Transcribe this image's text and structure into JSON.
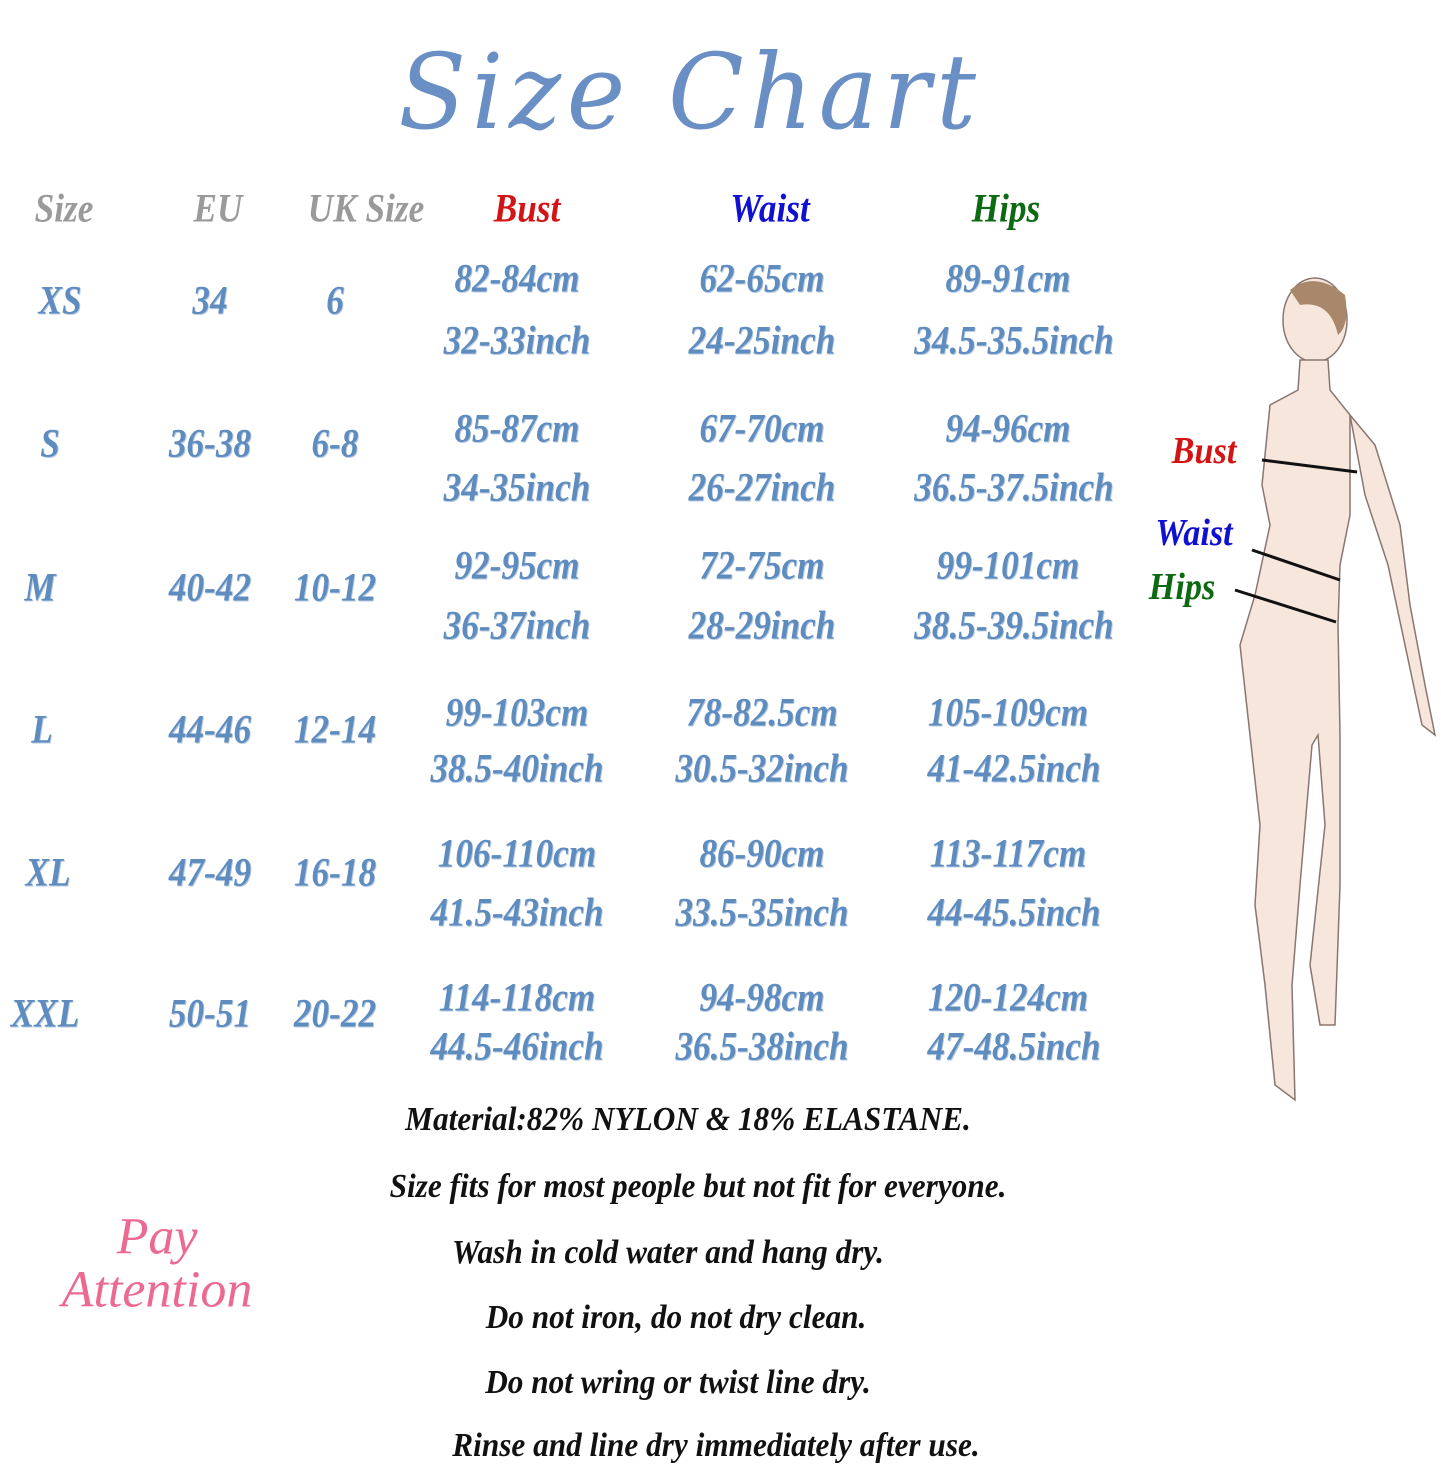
{
  "title": "Size Chart",
  "colors": {
    "bust": "#d41414",
    "waist": "#1010d0",
    "hips": "#0d6a12",
    "header_gray": "#9a9a9a",
    "values": "#5f8cbf",
    "title": "#6a8fc4",
    "attention": "#ec6a92"
  },
  "table": {
    "headers": {
      "size": "Size",
      "eu": "EU",
      "uk": "UK Size",
      "bust": "Bust",
      "waist": "Waist",
      "hips": "Hips"
    },
    "rows": [
      {
        "size": "XS",
        "eu": "34",
        "uk": "6",
        "bust_cm": "82-84cm",
        "bust_in": "32-33inch",
        "waist_cm": "62-65cm",
        "waist_in": "24-25inch",
        "hips_cm": "89-91cm",
        "hips_in": "34.5-35.5inch"
      },
      {
        "size": "S",
        "eu": "36-38",
        "uk": "6-8",
        "bust_cm": "85-87cm",
        "bust_in": "34-35inch",
        "waist_cm": "67-70cm",
        "waist_in": "26-27inch",
        "hips_cm": "94-96cm",
        "hips_in": "36.5-37.5inch"
      },
      {
        "size": "M",
        "eu": "40-42",
        "uk": "10-12",
        "bust_cm": "92-95cm",
        "bust_in": "36-37inch",
        "waist_cm": "72-75cm",
        "waist_in": "28-29inch",
        "hips_cm": "99-101cm",
        "hips_in": "38.5-39.5inch"
      },
      {
        "size": "L",
        "eu": "44-46",
        "uk": "12-14",
        "bust_cm": "99-103cm",
        "bust_in": "38.5-40inch",
        "waist_cm": "78-82.5cm",
        "waist_in": "30.5-32inch",
        "hips_cm": "105-109cm",
        "hips_in": "41-42.5inch"
      },
      {
        "size": "XL",
        "eu": "47-49",
        "uk": "16-18",
        "bust_cm": "106-110cm",
        "bust_in": "41.5-43inch",
        "waist_cm": "86-90cm",
        "waist_in": "33.5-35inch",
        "hips_cm": "113-117cm",
        "hips_in": "44-45.5inch"
      },
      {
        "size": "XXL",
        "eu": "50-51",
        "uk": "20-22",
        "bust_cm": "114-118cm",
        "bust_in": "44.5-46inch",
        "waist_cm": "94-98cm",
        "waist_in": "36.5-38inch",
        "hips_cm": "120-124cm",
        "hips_in": "47-48.5inch"
      }
    ]
  },
  "figure": {
    "bust_label": "Bust",
    "waist_label": "Waist",
    "hips_label": "Hips"
  },
  "attention": {
    "line1": "Pay",
    "line2": "Attention"
  },
  "notes": [
    "Material:82% NYLON & 18% ELASTANE.",
    "Size fits for most people but not fit for everyone.",
    "Wash in cold water and hang dry.",
    "Do not iron, do not dry clean.",
    "Do not wring or twist line dry.",
    "Rinse and line dry immediately after use."
  ]
}
